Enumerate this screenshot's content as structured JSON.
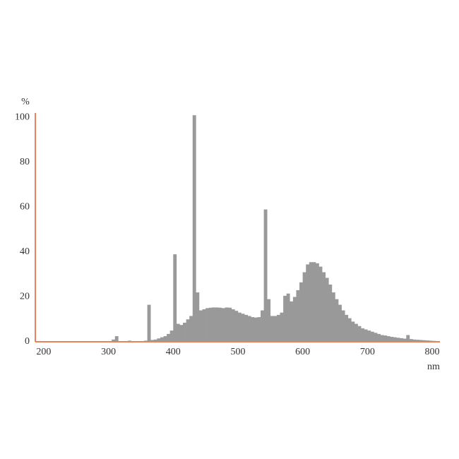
{
  "chart_data": {
    "type": "histogram",
    "y_label": "%",
    "x_label": "nm",
    "color": "#999999",
    "axis_color": "#e8825a",
    "xlim": [
      187,
      812
    ],
    "ylim": [
      0,
      102
    ],
    "xticks": [
      200,
      300,
      400,
      500,
      600,
      700,
      800
    ],
    "yticks": [
      0,
      20,
      40,
      60,
      80,
      100
    ],
    "grid": false,
    "bins": [
      300,
      305,
      310,
      315,
      320,
      325,
      330,
      335,
      340,
      345,
      350,
      355,
      360,
      365,
      370,
      375,
      380,
      385,
      390,
      395,
      400,
      405,
      410,
      415,
      420,
      425,
      430,
      435,
      440,
      445,
      450,
      455,
      460,
      465,
      470,
      475,
      480,
      485,
      490,
      495,
      500,
      505,
      510,
      515,
      520,
      525,
      530,
      535,
      540,
      545,
      550,
      555,
      560,
      565,
      570,
      575,
      580,
      585,
      590,
      595,
      600,
      605,
      610,
      615,
      620,
      625,
      630,
      635,
      640,
      645,
      650,
      655,
      660,
      665,
      670,
      675,
      680,
      685,
      690,
      695,
      700,
      705,
      710,
      715,
      720,
      725,
      730,
      735,
      740,
      745,
      750,
      755,
      760,
      765,
      770,
      775,
      780,
      785,
      790,
      795,
      800,
      805,
      810
    ],
    "values": [
      0,
      1,
      2.5,
      0,
      0,
      0,
      0.5,
      0,
      0,
      0,
      0.3,
      0.5,
      16.5,
      0.8,
      1,
      1.5,
      2,
      2.5,
      3.5,
      5,
      39,
      8,
      7.5,
      8.5,
      10,
      11.5,
      101,
      22,
      14,
      14.5,
      15,
      15.2,
      15.3,
      15.3,
      15.2,
      15,
      15.3,
      15.2,
      14.5,
      13.8,
      13,
      12.5,
      12,
      11.5,
      11,
      10.8,
      11,
      14,
      59,
      19,
      11.5,
      11.5,
      12,
      13,
      20.5,
      21.5,
      18,
      20,
      23,
      26.5,
      31,
      34.5,
      35.5,
      35.5,
      35,
      33.5,
      31,
      28.5,
      25.5,
      22,
      19,
      16.5,
      14,
      12,
      10.5,
      9,
      8,
      7,
      6,
      5.5,
      5,
      4.5,
      4,
      3.5,
      3,
      2.8,
      2.5,
      2.2,
      2,
      1.8,
      1.6,
      1.4,
      3,
      1.2,
      1,
      0.9,
      0.8,
      0.7,
      0.6,
      0.5,
      0.4,
      0.3
    ]
  }
}
